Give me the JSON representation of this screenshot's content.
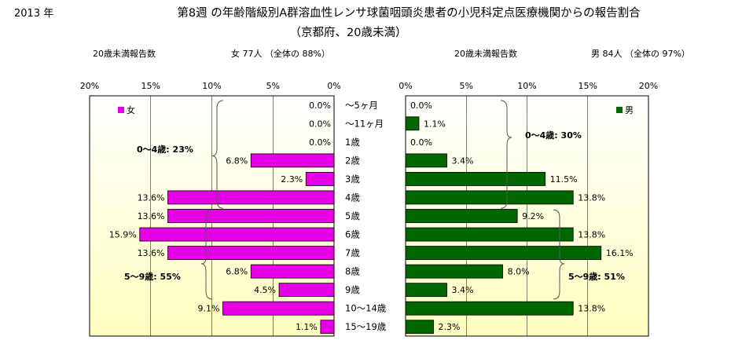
{
  "year_label": "2013 年",
  "title_line1": "第8週 の年齢階級別A群溶血性レンサ球菌咽頭炎患者の小児科定点医療機関からの報告割合",
  "title_line2": "（京都府、20歳未満）",
  "colors": {
    "female": "#e600e6",
    "male": "#006600",
    "plot_bg_top": "#ffffff",
    "plot_bg_bottom": "#ffffc0"
  },
  "chart_data": [
    {
      "type": "bar",
      "orientation": "horizontal",
      "direction": "right-to-left",
      "subtitle_left": "20歳未満報告数",
      "subtitle_right": "女  77人 （全体の  88%）",
      "legend": "女",
      "legend_position": "top-left",
      "xlim": [
        0,
        20
      ],
      "xticks": [
        "20%",
        "15%",
        "10%",
        "5%",
        "0%"
      ],
      "categories": [
        "～5ヶ月",
        "～11ヶ月",
        "1歳",
        "2歳",
        "3歳",
        "4歳",
        "5歳",
        "6歳",
        "7歳",
        "8歳",
        "9歳",
        "10～14歳",
        "15～19歳"
      ],
      "values": [
        0.0,
        0.0,
        0.0,
        6.8,
        2.3,
        13.6,
        13.6,
        15.9,
        13.6,
        6.8,
        4.5,
        9.1,
        1.1
      ],
      "value_labels": [
        "0.0%",
        "0.0%",
        "0.0%",
        "6.8%",
        "2.3%",
        "13.6%",
        "13.6%",
        "15.9%",
        "13.6%",
        "6.8%",
        "4.5%",
        "9.1%",
        "1.1%"
      ],
      "annotations": [
        "0～4歳:  23%",
        "5～9歳:  55%"
      ]
    },
    {
      "type": "bar",
      "orientation": "horizontal",
      "direction": "left-to-right",
      "subtitle_left": "20歳未満報告数",
      "subtitle_right": "男  84人 （全体の  97%）",
      "legend": "男",
      "legend_position": "top-right",
      "xlim": [
        0,
        20
      ],
      "xticks": [
        "0%",
        "5%",
        "10%",
        "15%",
        "20%"
      ],
      "categories": [
        "～5ヶ月",
        "～11ヶ月",
        "1歳",
        "2歳",
        "3歳",
        "4歳",
        "5歳",
        "6歳",
        "7歳",
        "8歳",
        "9歳",
        "10～14歳",
        "15～19歳"
      ],
      "values": [
        0.0,
        1.1,
        0.0,
        3.4,
        11.5,
        13.8,
        9.2,
        13.8,
        16.1,
        8.0,
        3.4,
        13.8,
        2.3
      ],
      "value_labels": [
        "0.0%",
        "1.1%",
        "0.0%",
        "3.4%",
        "11.5%",
        "13.8%",
        "9.2%",
        "13.8%",
        "16.1%",
        "8.0%",
        "3.4%",
        "13.8%",
        "2.3%"
      ],
      "annotations": [
        "0～4歳:  30%",
        "5～9歳:  51%"
      ]
    }
  ]
}
